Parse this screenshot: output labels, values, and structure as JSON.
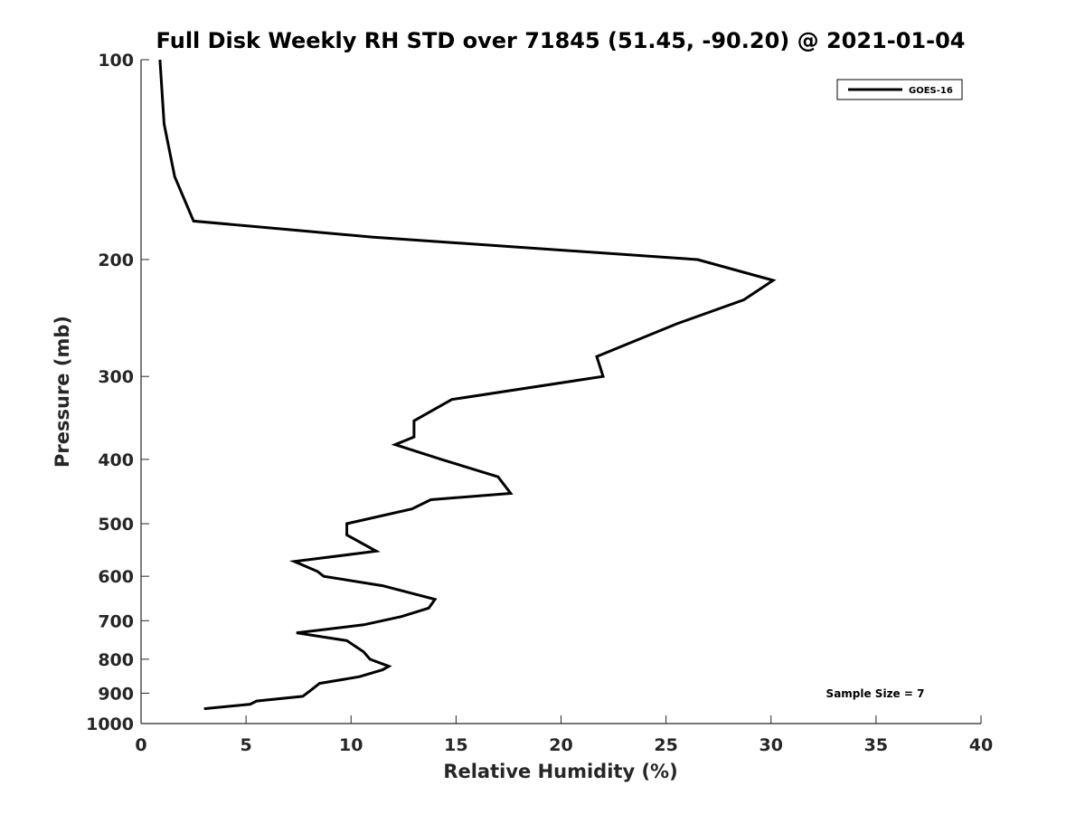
{
  "chart_data": {
    "type": "line",
    "title": "Full Disk Weekly RH STD over 71845 (51.45, -90.20) @ 2021-01-04",
    "xlabel": "Relative Humidity (%)",
    "ylabel": "Pressure (mb)",
    "xlim": [
      0,
      40
    ],
    "ylim": [
      100,
      1000
    ],
    "y_scale": "log",
    "y_reversed": true,
    "x_ticks": [
      0,
      5,
      10,
      15,
      20,
      25,
      30,
      35,
      40
    ],
    "y_ticks": [
      100,
      200,
      300,
      400,
      500,
      600,
      700,
      800,
      900,
      1000
    ],
    "grid": false,
    "legend_position": "top-right",
    "annotation": "Sample Size = 7",
    "series": [
      {
        "name": "GOES-16",
        "color": "#000000",
        "points": [
          [
            0.9,
            100
          ],
          [
            1.1,
            125
          ],
          [
            1.6,
            150
          ],
          [
            2.5,
            175
          ],
          [
            11.0,
            185
          ],
          [
            26.5,
            200
          ],
          [
            30.1,
            215
          ],
          [
            28.7,
            230
          ],
          [
            25.5,
            250
          ],
          [
            21.7,
            280
          ],
          [
            22.0,
            300
          ],
          [
            14.8,
            325
          ],
          [
            13.0,
            350
          ],
          [
            13.0,
            370
          ],
          [
            12.1,
            380
          ],
          [
            14.3,
            400
          ],
          [
            17.0,
            425
          ],
          [
            17.6,
            450
          ],
          [
            13.8,
            460
          ],
          [
            12.9,
            475
          ],
          [
            9.8,
            500
          ],
          [
            9.8,
            520
          ],
          [
            11.2,
            550
          ],
          [
            7.3,
            570
          ],
          [
            8.4,
            590
          ],
          [
            8.7,
            600
          ],
          [
            11.5,
            620
          ],
          [
            14.0,
            650
          ],
          [
            13.7,
            670
          ],
          [
            12.4,
            690
          ],
          [
            10.6,
            710
          ],
          [
            7.4,
            730
          ],
          [
            9.8,
            750
          ],
          [
            10.6,
            780
          ],
          [
            10.9,
            800
          ],
          [
            11.8,
            820
          ],
          [
            11.5,
            830
          ],
          [
            10.4,
            850
          ],
          [
            8.5,
            870
          ],
          [
            8.1,
            890
          ],
          [
            7.7,
            910
          ],
          [
            5.5,
            925
          ],
          [
            5.2,
            935
          ],
          [
            3.0,
            950
          ]
        ]
      }
    ]
  }
}
